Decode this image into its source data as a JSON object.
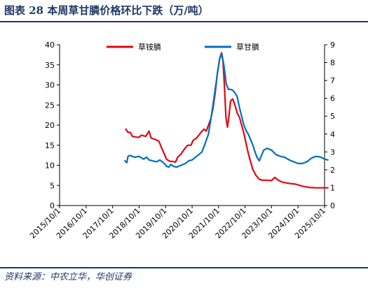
{
  "header": {
    "title": "图表 28   本周草甘膦价格环比下跌（万/吨）"
  },
  "footer": {
    "source": "资料来源：中农立华，华创证券"
  },
  "chart_data": {
    "type": "line",
    "title": "图表 28   本周草甘膦价格环比下跌（万/吨）",
    "x_type": "date",
    "x_ticks": [
      "2015/10/1",
      "2016/10/1",
      "2017/10/1",
      "2018/10/1",
      "2019/10/1",
      "2020/10/1",
      "2021/10/1",
      "2022/10/1",
      "2023/10/1",
      "2024/10/1",
      "2025/10/1"
    ],
    "y_left": {
      "ticks": [
        0,
        5,
        10,
        15,
        20,
        25,
        30,
        35,
        40
      ],
      "ylim": [
        0,
        40
      ]
    },
    "y_right": {
      "ticks": [
        0,
        1,
        2,
        3,
        4,
        5,
        6,
        7,
        8,
        9
      ],
      "ylim": [
        0,
        9
      ]
    },
    "legend_position": "top-center",
    "grid": false,
    "series": [
      {
        "name": "草铵膦",
        "axis": "left",
        "color": "#e30613",
        "points": [
          [
            "2018/04/01",
            19.0
          ],
          [
            "2018/05/01",
            18.2
          ],
          [
            "2018/06/01",
            18.2
          ],
          [
            "2018/07/01",
            17.2
          ],
          [
            "2018/09/01",
            17.0
          ],
          [
            "2018/10/01",
            17.0
          ],
          [
            "2018/11/01",
            17.5
          ],
          [
            "2019/01/01",
            17.2
          ],
          [
            "2019/02/15",
            18.5
          ],
          [
            "2019/03/15",
            16.8
          ],
          [
            "2019/05/01",
            16.5
          ],
          [
            "2019/07/01",
            16.0
          ],
          [
            "2019/08/15",
            14.0
          ],
          [
            "2019/09/15",
            12.8
          ],
          [
            "2019/10/15",
            11.5
          ],
          [
            "2019/12/01",
            11.0
          ],
          [
            "2020/01/01",
            11.0
          ],
          [
            "2020/02/15",
            10.8
          ],
          [
            "2020/03/15",
            12.0
          ],
          [
            "2020/05/01",
            12.8
          ],
          [
            "2020/06/15",
            14.0
          ],
          [
            "2020/08/01",
            15.0
          ],
          [
            "2020/09/15",
            15.0
          ],
          [
            "2020/10/15",
            16.2
          ],
          [
            "2020/12/01",
            16.8
          ],
          [
            "2021/01/01",
            17.5
          ],
          [
            "2021/02/15",
            18.5
          ],
          [
            "2021/03/15",
            19.0
          ],
          [
            "2021/04/15",
            18.5
          ],
          [
            "2021/05/15",
            20.0
          ],
          [
            "2021/06/15",
            21.5
          ],
          [
            "2021/07/15",
            24.0
          ],
          [
            "2021/08/15",
            28.0
          ],
          [
            "2021/09/15",
            33.0
          ],
          [
            "2021/10/15",
            36.5
          ],
          [
            "2021/11/10",
            38.0
          ],
          [
            "2021/12/01",
            36.0
          ],
          [
            "2021/12/20",
            30.0
          ],
          [
            "2022/01/10",
            22.0
          ],
          [
            "2022/02/01",
            19.5
          ],
          [
            "2022/02/20",
            22.0
          ],
          [
            "2022/03/15",
            26.0
          ],
          [
            "2022/04/15",
            26.5
          ],
          [
            "2022/05/15",
            25.0
          ],
          [
            "2022/06/15",
            23.0
          ],
          [
            "2022/07/15",
            22.0
          ],
          [
            "2022/08/15",
            20.0
          ],
          [
            "2022/09/15",
            18.0
          ],
          [
            "2022/10/15",
            15.5
          ],
          [
            "2022/11/15",
            13.0
          ],
          [
            "2022/12/15",
            11.0
          ],
          [
            "2023/01/15",
            9.0
          ],
          [
            "2023/03/01",
            7.5
          ],
          [
            "2023/04/15",
            6.5
          ],
          [
            "2023/06/01",
            6.3
          ],
          [
            "2023/08/01",
            6.3
          ],
          [
            "2023/10/01",
            6.2
          ],
          [
            "2023/11/15",
            7.0
          ],
          [
            "2024/01/01",
            6.3
          ],
          [
            "2024/03/01",
            5.8
          ],
          [
            "2024/06/01",
            5.5
          ],
          [
            "2024/09/01",
            5.3
          ],
          [
            "2024/12/01",
            4.8
          ],
          [
            "2025/03/01",
            4.5
          ],
          [
            "2025/06/01",
            4.4
          ],
          [
            "2025/09/01",
            4.4
          ],
          [
            "2025/11/15",
            4.4
          ]
        ]
      },
      {
        "name": "草甘膦",
        "axis": "right",
        "color": "#0070c0",
        "points": [
          [
            "2018/03/20",
            2.5
          ],
          [
            "2018/04/15",
            2.4
          ],
          [
            "2018/05/01",
            2.75
          ],
          [
            "2018/06/01",
            2.8
          ],
          [
            "2018/07/01",
            2.75
          ],
          [
            "2018/08/01",
            2.7
          ],
          [
            "2018/10/01",
            2.75
          ],
          [
            "2018/12/01",
            2.6
          ],
          [
            "2019/01/15",
            2.7
          ],
          [
            "2019/02/15",
            2.55
          ],
          [
            "2019/04/01",
            2.5
          ],
          [
            "2019/06/01",
            2.45
          ],
          [
            "2019/07/15",
            2.55
          ],
          [
            "2019/08/15",
            2.45
          ],
          [
            "2019/09/15",
            2.35
          ],
          [
            "2019/10/15",
            2.2
          ],
          [
            "2019/11/15",
            2.15
          ],
          [
            "2019/12/15",
            2.3
          ],
          [
            "2020/01/15",
            2.2
          ],
          [
            "2020/03/01",
            2.15
          ],
          [
            "2020/05/01",
            2.25
          ],
          [
            "2020/07/01",
            2.35
          ],
          [
            "2020/08/15",
            2.5
          ],
          [
            "2020/10/01",
            2.55
          ],
          [
            "2020/11/15",
            2.7
          ],
          [
            "2021/01/01",
            2.85
          ],
          [
            "2021/02/15",
            3.0
          ],
          [
            "2021/04/01",
            3.5
          ],
          [
            "2021/05/15",
            4.0
          ],
          [
            "2021/07/01",
            5.2
          ],
          [
            "2021/08/15",
            6.5
          ],
          [
            "2021/09/15",
            7.4
          ],
          [
            "2021/10/15",
            8.2
          ],
          [
            "2021/11/15",
            8.5
          ],
          [
            "2021/12/15",
            7.8
          ],
          [
            "2022/01/15",
            6.8
          ],
          [
            "2022/02/15",
            6.5
          ],
          [
            "2022/03/15",
            6.5
          ],
          [
            "2022/04/15",
            6.45
          ],
          [
            "2022/05/15",
            6.3
          ],
          [
            "2022/06/15",
            6.1
          ],
          [
            "2022/07/15",
            5.5
          ],
          [
            "2022/08/15",
            5.0
          ],
          [
            "2022/09/15",
            4.5
          ],
          [
            "2022/10/15",
            4.2
          ],
          [
            "2022/11/15",
            4.0
          ],
          [
            "2022/12/15",
            3.7
          ],
          [
            "2023/01/15",
            3.4
          ],
          [
            "2023/02/15",
            3.0
          ],
          [
            "2023/03/15",
            2.7
          ],
          [
            "2023/04/15",
            2.5
          ],
          [
            "2023/05/15",
            2.8
          ],
          [
            "2023/06/15",
            3.1
          ],
          [
            "2023/08/01",
            3.2
          ],
          [
            "2023/10/01",
            3.1
          ],
          [
            "2023/12/01",
            2.85
          ],
          [
            "2024/02/01",
            2.75
          ],
          [
            "2024/04/01",
            2.7
          ],
          [
            "2024/06/01",
            2.55
          ],
          [
            "2024/08/01",
            2.45
          ],
          [
            "2024/10/01",
            2.35
          ],
          [
            "2024/12/01",
            2.35
          ],
          [
            "2025/02/01",
            2.45
          ],
          [
            "2025/04/01",
            2.65
          ],
          [
            "2025/06/01",
            2.75
          ],
          [
            "2025/08/01",
            2.72
          ],
          [
            "2025/10/01",
            2.6
          ],
          [
            "2025/11/15",
            2.55
          ]
        ]
      }
    ]
  }
}
